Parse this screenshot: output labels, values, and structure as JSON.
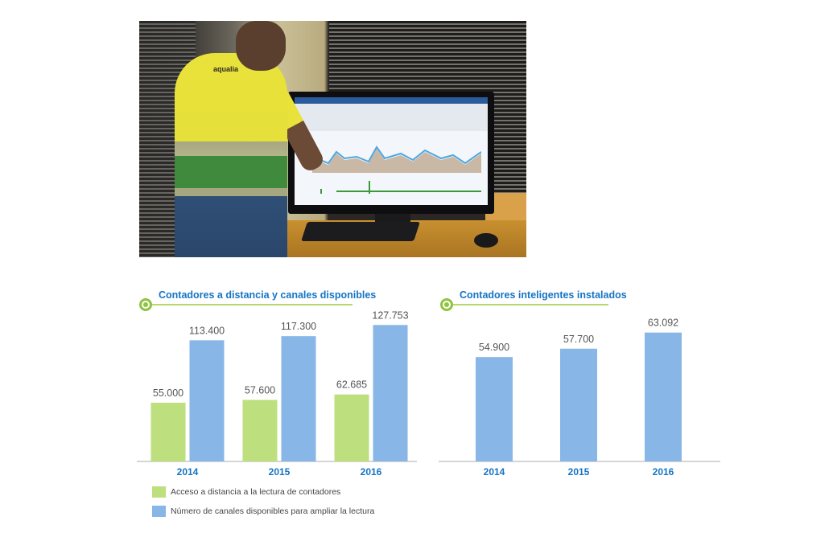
{
  "photo": {
    "shirt_logo": "aqualia"
  },
  "colors": {
    "green": "#bedf7e",
    "blue": "#88b6e6",
    "axis_label": "#1574c4",
    "value_label": "#555555",
    "axis_line": "#c7c7c7"
  },
  "legend": [
    {
      "label": "Acceso a distancia a la lectura de contadores",
      "color": "#bedf7e"
    },
    {
      "label": "Número de canales disponibles para ampliar la lectura",
      "color": "#88b6e6"
    }
  ],
  "chart_data": [
    {
      "type": "bar",
      "title": "Contadores a distancia y canales disponibles",
      "categories": [
        "2014",
        "2015",
        "2016"
      ],
      "series": [
        {
          "name": "Acceso a distancia a la lectura de contadores",
          "values": [
            55000,
            57600,
            62685
          ],
          "labels": [
            "55.000",
            "57.600",
            "62.685"
          ],
          "color": "#bedf7e"
        },
        {
          "name": "Número de canales disponibles para ampliar la lectura",
          "values": [
            113400,
            117300,
            127753
          ],
          "labels": [
            "113.400",
            "117.300",
            "127.753"
          ],
          "color": "#88b6e6"
        }
      ],
      "ylim": [
        0,
        140000
      ],
      "grid": false,
      "legend_position": "bottom-left"
    },
    {
      "type": "bar",
      "title": "Contadores inteligentes instalados",
      "categories": [
        "2014",
        "2015",
        "2016"
      ],
      "series": [
        {
          "values": [
            54900,
            57700,
            63092
          ],
          "labels": [
            "54.900",
            "57.700",
            "63.092"
          ],
          "color": "#88b6e6"
        }
      ],
      "ylim": [
        20000,
        70000
      ],
      "grid": false
    }
  ]
}
